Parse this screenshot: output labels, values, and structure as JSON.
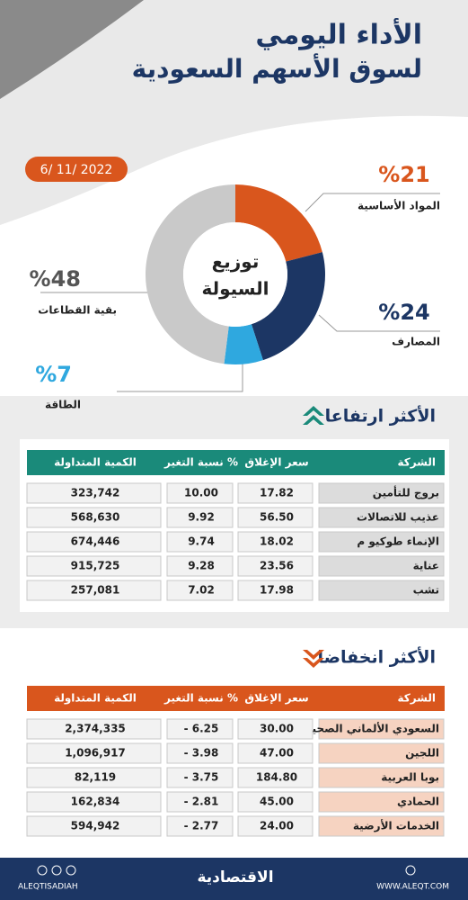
{
  "header": {
    "title_line1": "الأداء اليومي",
    "title_line2": "لسوق الأسهم السعودية",
    "date": "6/ 11/ 2022"
  },
  "chart_data": {
    "type": "pie",
    "title": "توزيع",
    "subtitle": "السيولة",
    "categories": [
      "المواد الأساسية",
      "المصارف",
      "الطاقة",
      "بقية القطاعات"
    ],
    "values": [
      21,
      24,
      7,
      48
    ],
    "value_labels": [
      "%21",
      "%24",
      "%7",
      "%48"
    ],
    "colors": [
      "#d9561d",
      "#1c3664",
      "#2fa8df",
      "#c9c9c9"
    ]
  },
  "gainers": {
    "title": "الأكثر ارتفاعا",
    "columns": [
      "الشركة",
      "سعر الإغلاق",
      "نسبة التغير %",
      "الكمية المتداولة"
    ],
    "rows": [
      [
        "بروج للتأمين",
        "17.82",
        "10.00",
        "323,742"
      ],
      [
        "عذيب للاتصالات",
        "56.50",
        "9.92",
        "568,630"
      ],
      [
        "الإنماء طوكيو م",
        "18.02",
        "9.74",
        "674,446"
      ],
      [
        "عناية",
        "23.56",
        "9.28",
        "915,725"
      ],
      [
        "تشب",
        "17.98",
        "7.02",
        "257,081"
      ]
    ]
  },
  "losers": {
    "title": "الأكثر انخفاضا",
    "columns": [
      "الشركة",
      "سعر الإغلاق",
      "نسبة التغير %",
      "الكمية المتداولة"
    ],
    "rows": [
      [
        "السعودي الألماني الصحية",
        "30.00",
        "- 6.25",
        "2,374,335"
      ],
      [
        "اللجين",
        "47.00",
        "- 3.98",
        "1,096,917"
      ],
      [
        "بوبا العربية",
        "184.80",
        "- 3.75",
        "82,119"
      ],
      [
        "الحمادي",
        "45.00",
        "- 2.81",
        "162,834"
      ],
      [
        "الخدمات الأرضية",
        "24.00",
        "- 2.77",
        "594,942"
      ]
    ]
  },
  "footer": {
    "social": "ALEQTISADIAH",
    "logo": "الاقتصادية",
    "site": "WWW.ALEQT.COM"
  }
}
